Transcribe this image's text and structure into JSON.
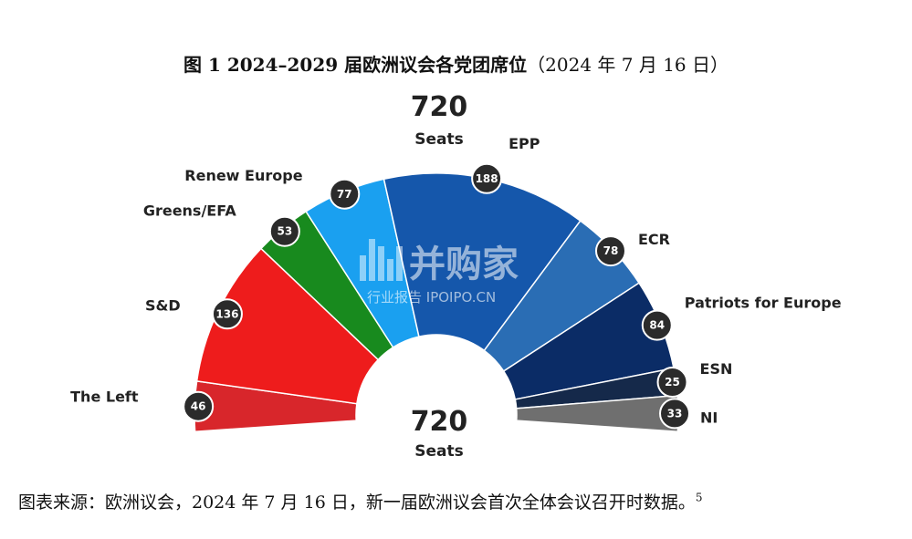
{
  "figure": {
    "title_bold": "图 1  2024–2029 届欧洲议会各党团席位",
    "title_normal": "（2024 年 7 月 16 日）",
    "source_text": "图表来源：欧洲议会，2024 年 7 月 16 日，新一届欧洲议会首次全体会议召开时数据。",
    "footnote": "5"
  },
  "chart_data": {
    "type": "pie",
    "subtype": "hemicycle",
    "total": 720,
    "total_label": "Seats",
    "categories": [
      "The Left",
      "S&D",
      "Greens/EFA",
      "Renew Europe",
      "EPP",
      "ECR",
      "Patriots for Europe",
      "ESN",
      "NI"
    ],
    "values": [
      46,
      136,
      53,
      77,
      188,
      78,
      84,
      25,
      33
    ],
    "colors": [
      "#d8262b",
      "#ee1c1c",
      "#188a1e",
      "#1aa0f0",
      "#1557ab",
      "#2a6db4",
      "#0b2c66",
      "#15294a",
      "#6f6f6f"
    ]
  },
  "watermark": {
    "main": "并购家",
    "sub": "行业报告 IPOIPO.CN"
  }
}
